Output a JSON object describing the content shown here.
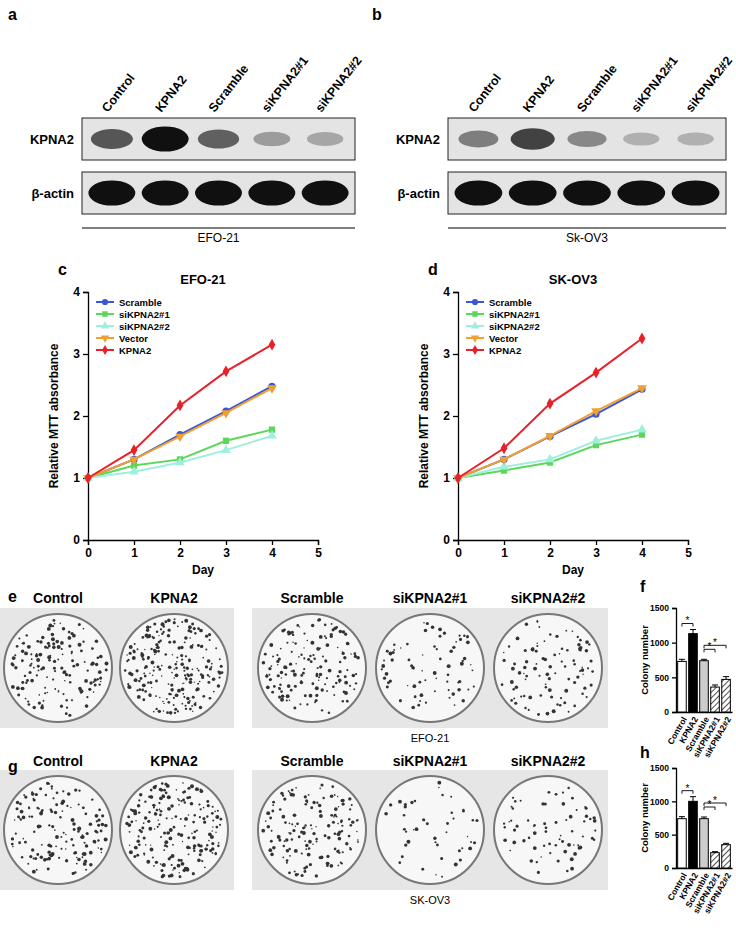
{
  "chart_data": [
    {
      "type": "blot",
      "panel": "a",
      "lanes": [
        "Control",
        "KPNA2",
        "Scramble",
        "siKPNA2#1",
        "siKPNA2#2"
      ],
      "rows": [
        {
          "name": "KPNA2",
          "values": [
            0.65,
            1,
            0.6,
            0.3,
            0.25
          ]
        },
        {
          "name": "β-actin",
          "values": [
            1,
            1,
            1,
            1,
            1
          ]
        }
      ],
      "caption": "EFO-21"
    },
    {
      "type": "blot",
      "panel": "b",
      "lanes": [
        "Control",
        "KPNA2",
        "Scramble",
        "siKPNA2#1",
        "siKPNA2#2"
      ],
      "rows": [
        {
          "name": "KPNA2",
          "values": [
            0.45,
            0.75,
            0.4,
            0.2,
            0.2
          ]
        },
        {
          "name": "β-actin",
          "values": [
            1,
            1,
            1,
            1,
            1
          ]
        }
      ],
      "caption": "Sk-OV3"
    },
    {
      "type": "line",
      "panel": "c",
      "title": "EFO-21",
      "x_label": "Day",
      "y_label": "Relative MTT absorbance",
      "x": [
        0,
        1,
        2,
        3,
        4
      ],
      "xlim": [
        0,
        5
      ],
      "xticks": [
        0,
        1,
        2,
        3,
        4,
        5
      ],
      "ylim": [
        0,
        4
      ],
      "yticks": [
        0,
        1,
        2,
        3,
        4
      ],
      "legend": "upper-left",
      "series": [
        {
          "name": "Scramble",
          "color": "#3c56d8",
          "marker": "circle",
          "values": [
            1,
            1.3,
            1.7,
            2.08,
            2.48
          ]
        },
        {
          "name": "siKPNA2#1",
          "color": "#5cd65c",
          "marker": "square",
          "values": [
            1,
            1.2,
            1.3,
            1.6,
            1.78
          ]
        },
        {
          "name": "siKPNA2#2",
          "color": "#9ef0dc",
          "marker": "triangle",
          "values": [
            1,
            1.1,
            1.25,
            1.45,
            1.68
          ]
        },
        {
          "name": "Vector",
          "color": "#f0a030",
          "marker": "triangle-down",
          "values": [
            1,
            1.3,
            1.67,
            2.05,
            2.45
          ]
        },
        {
          "name": "KPNA2",
          "color": "#e8202a",
          "marker": "diamond",
          "values": [
            1,
            1.45,
            2.17,
            2.72,
            3.15
          ]
        }
      ]
    },
    {
      "type": "line",
      "panel": "d",
      "title": "SK-OV3",
      "x_label": "Day",
      "y_label": "Relative MTT absorbance",
      "x": [
        0,
        1,
        2,
        3,
        4
      ],
      "xlim": [
        0,
        5
      ],
      "xticks": [
        0,
        1,
        2,
        3,
        4,
        5
      ],
      "ylim": [
        0,
        4
      ],
      "yticks": [
        0,
        1,
        2,
        3,
        4
      ],
      "legend": "upper-left",
      "series": [
        {
          "name": "Scramble",
          "color": "#3c56d8",
          "marker": "circle",
          "values": [
            1,
            1.3,
            1.67,
            2.03,
            2.43
          ]
        },
        {
          "name": "siKPNA2#1",
          "color": "#5cd65c",
          "marker": "square",
          "values": [
            1,
            1.12,
            1.25,
            1.53,
            1.7
          ]
        },
        {
          "name": "siKPNA2#2",
          "color": "#9ef0dc",
          "marker": "triangle",
          "values": [
            1,
            1.18,
            1.3,
            1.6,
            1.78
          ]
        },
        {
          "name": "Vector",
          "color": "#f0a030",
          "marker": "triangle-down",
          "values": [
            1,
            1.3,
            1.68,
            2.08,
            2.45
          ]
        },
        {
          "name": "KPNA2",
          "color": "#e8202a",
          "marker": "diamond",
          "values": [
            1,
            1.48,
            2.2,
            2.7,
            3.25
          ]
        }
      ]
    },
    {
      "type": "image",
      "panel": "e",
      "labels": [
        "Control",
        "KPNA2",
        "Scramble",
        "siKPNA2#1",
        "siKPNA2#2"
      ],
      "caption": "EFO-21"
    },
    {
      "type": "bar",
      "panel": "f",
      "y_label": "Colony number",
      "categories": [
        "Control",
        "KPNA2",
        "Scramble",
        "siKPNA2#1",
        "siKPNA2#2"
      ],
      "values": [
        730,
        1130,
        740,
        360,
        470
      ],
      "errors": [
        30,
        60,
        20,
        30,
        40
      ],
      "colors": [
        "#ffffff",
        "#000000",
        "#cccccc",
        "url(#hatch)",
        "url(#hatch)"
      ],
      "ylim": [
        0,
        1500
      ],
      "yticks": [
        0,
        500,
        1000,
        1500
      ],
      "annotations": [
        {
          "from": 0,
          "to": 1,
          "label": "*"
        },
        {
          "from": 2,
          "to": 3,
          "label": "*"
        },
        {
          "from": 2,
          "to": 4,
          "label": "*"
        }
      ]
    },
    {
      "type": "image",
      "panel": "g",
      "labels": [
        "Control",
        "KPNA2",
        "Scramble",
        "siKPNA2#1",
        "siKPNA2#2"
      ],
      "caption": "SK-OV3"
    },
    {
      "type": "bar",
      "panel": "h",
      "y_label": "Colony number",
      "categories": [
        "Control",
        "KPNA2",
        "Scramble",
        "siKPNA2#1",
        "siKPNA2#2"
      ],
      "values": [
        740,
        1000,
        740,
        230,
        350
      ],
      "errors": [
        30,
        70,
        25,
        15,
        20
      ],
      "colors": [
        "#ffffff",
        "#000000",
        "#cccccc",
        "url(#hatch)",
        "url(#hatch)"
      ],
      "ylim": [
        0,
        1500
      ],
      "yticks": [
        0,
        500,
        1000,
        1500
      ],
      "annotations": [
        {
          "from": 0,
          "to": 1,
          "label": "*"
        },
        {
          "from": 2,
          "to": 3,
          "label": "*"
        },
        {
          "from": 2,
          "to": 4,
          "label": "*"
        }
      ]
    }
  ]
}
